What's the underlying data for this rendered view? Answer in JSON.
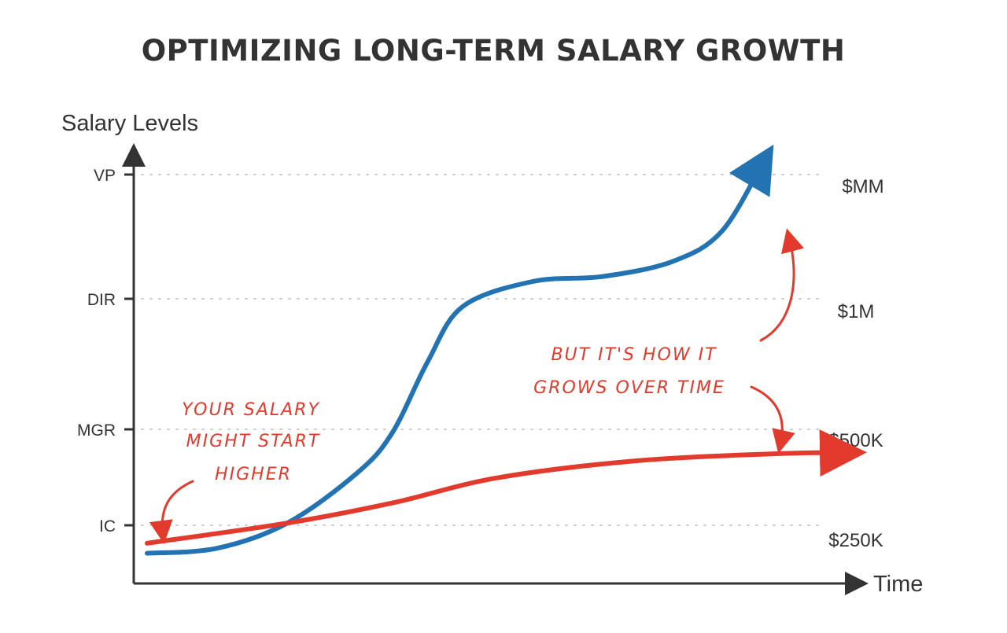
{
  "title": "OPTIMIZING LONG-TERM SALARY GROWTH",
  "colors": {
    "title": "#333333",
    "axis": "#333333",
    "grid": "#cccccc",
    "blue": "#2373b3",
    "red": "#e23b2e",
    "annotation": "#e23b2e"
  },
  "chart_data": {
    "type": "line",
    "title": "OPTIMIZING LONG-TERM SALARY GROWTH",
    "ylabel": "Salary Levels",
    "xlabel": "Time",
    "grid": true,
    "y_ticks": [
      "IC",
      "MGR",
      "DIR",
      "VP"
    ],
    "right_labels": [
      "$250K",
      "$500K",
      "$1M",
      "$MM"
    ],
    "series": [
      {
        "color": "#2373b3",
        "points": [
          [
            0,
            0.3
          ],
          [
            0.1,
            0.35
          ],
          [
            0.2,
            0.6
          ],
          [
            0.3,
            1.1
          ],
          [
            0.35,
            1.5
          ],
          [
            0.4,
            2.2
          ],
          [
            0.45,
            2.75
          ],
          [
            0.55,
            3.0
          ],
          [
            0.65,
            3.05
          ],
          [
            0.75,
            3.2
          ],
          [
            0.82,
            3.5
          ],
          [
            0.88,
            4.2
          ]
        ]
      },
      {
        "color": "#e23b2e",
        "points": [
          [
            0,
            0.4
          ],
          [
            0.2,
            0.6
          ],
          [
            0.35,
            0.8
          ],
          [
            0.5,
            1.05
          ],
          [
            0.7,
            1.22
          ],
          [
            0.9,
            1.29
          ],
          [
            1.0,
            1.3
          ]
        ]
      }
    ]
  },
  "annotations": [
    {
      "lines": [
        "YOUR SALARY",
        "MIGHT START",
        "HIGHER"
      ]
    },
    {
      "lines": [
        "BUT IT'S HOW IT",
        "GROWS OVER TIME"
      ]
    }
  ]
}
